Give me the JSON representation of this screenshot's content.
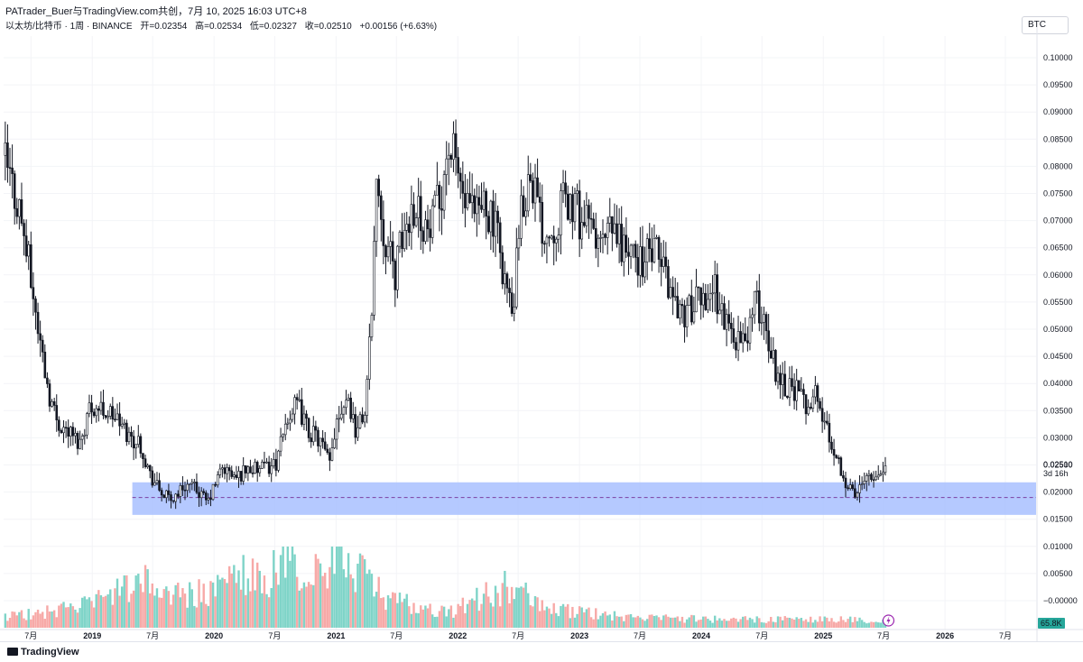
{
  "header": {
    "author_line": "PATrader_Buer与TradingView.com共创，7月 10, 2025 16:03 UTC+8",
    "symbol_title": "以太坊/比特币 · 1周 · BINANCE",
    "ohlc": {
      "open_label": "开",
      "open": "=0.02354",
      "high_label": "高",
      "high": "=0.02534",
      "low_label": "低",
      "low": "=0.02327",
      "close_label": "收",
      "close": "=0.02510",
      "change": "+0.00156 (+6.63%)"
    },
    "quote_badge": "BTC"
  },
  "footer": {
    "brand": "TradingView"
  },
  "colors": {
    "candle": "#131722",
    "zone_fill": "#a8c0ff",
    "zone_dash": "#7b3fa0",
    "volume_up": "#7fd4c8",
    "volume_down": "#f7a9a7",
    "volume_badge": "#26a69a",
    "flash_icon": "#9c27b0"
  },
  "chart_data": {
    "type": "candlestick",
    "title": "以太坊/比特币 · 1周 · BINANCE",
    "y_axis": {
      "range": [
        0.0,
        0.105
      ],
      "ticks": [
        "0.10000",
        "0.09500",
        "0.09000",
        "0.08500",
        "0.08000",
        "0.07500",
        "0.07000",
        "0.06500",
        "0.06000",
        "0.05500",
        "0.05000",
        "0.04500",
        "0.04000",
        "0.03500",
        "0.03000",
        "0.02500",
        "0.02000",
        "0.01500",
        "0.01000",
        "0.00500",
        "−0.00000"
      ],
      "tick_values": [
        0.1,
        0.095,
        0.09,
        0.085,
        0.08,
        0.075,
        0.07,
        0.065,
        0.06,
        0.055,
        0.05,
        0.045,
        0.04,
        0.035,
        0.03,
        0.025,
        0.02,
        0.015,
        0.01,
        0.005,
        0.0
      ]
    },
    "last_price": {
      "value": "0.02510",
      "countdown": "3d 16h"
    },
    "volume_badge": "65.8K",
    "x_axis": {
      "ticks": [
        {
          "label": "7月",
          "date": "2018-07-01",
          "bold": false
        },
        {
          "label": "2019",
          "date": "2019-01-01",
          "bold": true
        },
        {
          "label": "7月",
          "date": "2019-07-01",
          "bold": false
        },
        {
          "label": "2020",
          "date": "2020-01-01",
          "bold": true
        },
        {
          "label": "7月",
          "date": "2020-07-01",
          "bold": false
        },
        {
          "label": "2021",
          "date": "2021-01-01",
          "bold": true
        },
        {
          "label": "7月",
          "date": "2021-07-01",
          "bold": false
        },
        {
          "label": "2022",
          "date": "2022-01-01",
          "bold": true
        },
        {
          "label": "7月",
          "date": "2022-07-01",
          "bold": false
        },
        {
          "label": "2023",
          "date": "2023-01-01",
          "bold": true
        },
        {
          "label": "7月",
          "date": "2023-07-01",
          "bold": false
        },
        {
          "label": "2024",
          "date": "2024-01-01",
          "bold": true
        },
        {
          "label": "7月",
          "date": "2024-07-01",
          "bold": false
        },
        {
          "label": "2025",
          "date": "2025-01-01",
          "bold": true
        },
        {
          "label": "7月",
          "date": "2025-07-01",
          "bold": false
        },
        {
          "label": "2026",
          "date": "2026-01-01",
          "bold": true
        },
        {
          "label": "7月",
          "date": "2026-07-01",
          "bold": false
        }
      ],
      "range": [
        "2018-04-10",
        "2026-10-01"
      ]
    },
    "support_zone": {
      "low": 0.0158,
      "high": 0.0218,
      "mid": 0.019,
      "start": "2019-05-01"
    },
    "price_path": [
      [
        "2018-04-15",
        0.082
      ],
      [
        "2018-05-10",
        0.077
      ],
      [
        "2018-06-05",
        0.072
      ],
      [
        "2018-07-01",
        0.062
      ],
      [
        "2018-08-01",
        0.049
      ],
      [
        "2018-09-01",
        0.038
      ],
      [
        "2018-09-25",
        0.033
      ],
      [
        "2018-11-01",
        0.031
      ],
      [
        "2018-12-01",
        0.029
      ],
      [
        "2019-01-01",
        0.036
      ],
      [
        "2019-02-15",
        0.035
      ],
      [
        "2019-03-15",
        0.034
      ],
      [
        "2019-05-01",
        0.03
      ],
      [
        "2019-06-01",
        0.029
      ],
      [
        "2019-07-01",
        0.023
      ],
      [
        "2019-08-01",
        0.02
      ],
      [
        "2019-09-01",
        0.0185
      ],
      [
        "2019-10-15",
        0.0215
      ],
      [
        "2019-11-15",
        0.0205
      ],
      [
        "2019-12-20",
        0.018
      ],
      [
        "2020-02-01",
        0.0245
      ],
      [
        "2020-03-15",
        0.0225
      ],
      [
        "2020-04-15",
        0.0245
      ],
      [
        "2020-05-15",
        0.024
      ],
      [
        "2020-06-15",
        0.0245
      ],
      [
        "2020-07-15",
        0.0255
      ],
      [
        "2020-08-15",
        0.034
      ],
      [
        "2020-09-15",
        0.036
      ],
      [
        "2020-10-15",
        0.0315
      ],
      [
        "2020-11-20",
        0.0295
      ],
      [
        "2020-12-20",
        0.025
      ],
      [
        "2021-01-10",
        0.034
      ],
      [
        "2021-02-10",
        0.038
      ],
      [
        "2021-03-10",
        0.031
      ],
      [
        "2021-04-05",
        0.035
      ],
      [
        "2021-04-20",
        0.048
      ],
      [
        "2021-05-10",
        0.078
      ],
      [
        "2021-06-01",
        0.068
      ],
      [
        "2021-07-01",
        0.06
      ],
      [
        "2021-08-01",
        0.068
      ],
      [
        "2021-09-01",
        0.074
      ],
      [
        "2021-10-15",
        0.067
      ],
      [
        "2021-11-15",
        0.074
      ],
      [
        "2021-12-10",
        0.084
      ],
      [
        "2022-01-05",
        0.08
      ],
      [
        "2022-02-01",
        0.072
      ],
      [
        "2022-03-01",
        0.07
      ],
      [
        "2022-04-01",
        0.074
      ],
      [
        "2022-05-10",
        0.066
      ],
      [
        "2022-06-20",
        0.052
      ],
      [
        "2022-07-15",
        0.07
      ],
      [
        "2022-08-15",
        0.08
      ],
      [
        "2022-09-15",
        0.069
      ],
      [
        "2022-10-15",
        0.068
      ],
      [
        "2022-11-15",
        0.073
      ],
      [
        "2022-12-15",
        0.073
      ],
      [
        "2023-01-15",
        0.07
      ],
      [
        "2023-02-15",
        0.068
      ],
      [
        "2023-03-15",
        0.065
      ],
      [
        "2023-04-15",
        0.068
      ],
      [
        "2023-05-15",
        0.066
      ],
      [
        "2023-06-15",
        0.063
      ],
      [
        "2023-07-15",
        0.063
      ],
      [
        "2023-08-15",
        0.064
      ],
      [
        "2023-09-15",
        0.062
      ],
      [
        "2023-10-15",
        0.056
      ],
      [
        "2023-11-15",
        0.053
      ],
      [
        "2023-12-15",
        0.054
      ],
      [
        "2024-01-15",
        0.056
      ],
      [
        "2024-02-15",
        0.058
      ],
      [
        "2024-03-15",
        0.052
      ],
      [
        "2024-04-15",
        0.049
      ],
      [
        "2024-05-15",
        0.047
      ],
      [
        "2024-06-15",
        0.055
      ],
      [
        "2024-07-15",
        0.052
      ],
      [
        "2024-08-15",
        0.043
      ],
      [
        "2024-09-15",
        0.04
      ],
      [
        "2024-10-15",
        0.039
      ],
      [
        "2024-11-15",
        0.036
      ],
      [
        "2024-12-15",
        0.038
      ],
      [
        "2025-01-15",
        0.032
      ],
      [
        "2025-02-15",
        0.027
      ],
      [
        "2025-03-15",
        0.022
      ],
      [
        "2025-04-15",
        0.019
      ],
      [
        "2025-05-15",
        0.024
      ],
      [
        "2025-06-15",
        0.023
      ],
      [
        "2025-07-10",
        0.0251
      ]
    ],
    "volume_path": [
      [
        "2018-04-15",
        14
      ],
      [
        "2018-08-01",
        18
      ],
      [
        "2019-01-01",
        30
      ],
      [
        "2019-06-01",
        55
      ],
      [
        "2019-09-01",
        40
      ],
      [
        "2020-01-01",
        42
      ],
      [
        "2020-03-15",
        70
      ],
      [
        "2020-06-01",
        55
      ],
      [
        "2020-08-15",
        95
      ],
      [
        "2020-10-01",
        60
      ],
      [
        "2020-12-20",
        75
      ],
      [
        "2021-01-20",
        90
      ],
      [
        "2021-03-15",
        70
      ],
      [
        "2021-06-01",
        35
      ],
      [
        "2021-12-01",
        18
      ],
      [
        "2022-06-15",
        55
      ],
      [
        "2022-09-01",
        25
      ],
      [
        "2023-06-01",
        12
      ],
      [
        "2024-06-01",
        10
      ],
      [
        "2025-03-01",
        10
      ],
      [
        "2025-07-10",
        7
      ]
    ]
  }
}
